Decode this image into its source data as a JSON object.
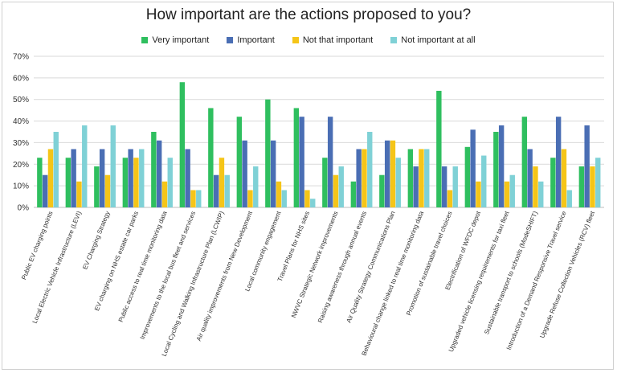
{
  "chart_data": {
    "type": "bar",
    "title": "How important are the actions proposed to you?",
    "xlabel": "",
    "ylabel": "",
    "ylim": [
      0,
      70
    ],
    "y_ticks": [
      "0%",
      "10%",
      "20%",
      "30%",
      "40%",
      "50%",
      "60%",
      "70%"
    ],
    "grid": true,
    "legend_position": "top",
    "categories": [
      "Public EV charging points",
      "Local Electric Vehicle Infrastructure (LEVI)",
      "EV Charging Strategy",
      "EV charging on NHS estate car parks",
      "Public access to real time monitoring data",
      "Improvements to the local bus fleet and services",
      "Local Cycling and Walking Infrastructure Plan (LCWIP)",
      "Air quality improvements from New Development",
      "Local community engagement",
      "Travel Plans for NHS sites",
      "NWVC Strategic Network improvements",
      "Raising awareness through annual events",
      "Air Quality Strategy Communications Plan",
      "Behavioural change linked to real time monitoring data",
      "Promotion of sustainable travel choices",
      "Electrification of WFDC depot",
      "Upgraded vehicle licensing requirements for taxi fleet",
      "Sustainable transport to schools (ModeSHIFT)",
      "Introduction of a Demand Responsive Travel service",
      "Upgrade Refuse Collection Vehicles (RCV) fleet"
    ],
    "series": [
      {
        "name": "Very important",
        "color": "#2fbf5f",
        "values": [
          23,
          23,
          19,
          23,
          35,
          58,
          46,
          42,
          50,
          46,
          23,
          12,
          15,
          27,
          54,
          28,
          35,
          42,
          23,
          19
        ]
      },
      {
        "name": "Important",
        "color": "#4a6eb4",
        "values": [
          15,
          27,
          27,
          27,
          31,
          27,
          15,
          31,
          31,
          42,
          42,
          27,
          31,
          19,
          19,
          36,
          38,
          27,
          42,
          38
        ]
      },
      {
        "name": "Not that important",
        "color": "#f5c518",
        "values": [
          27,
          12,
          15,
          23,
          12,
          8,
          23,
          8,
          12,
          8,
          15,
          27,
          31,
          27,
          8,
          12,
          12,
          19,
          27,
          19
        ]
      },
      {
        "name": "Not important at all",
        "color": "#7fd1d6",
        "values": [
          35,
          38,
          38,
          27,
          23,
          8,
          15,
          19,
          8,
          4,
          19,
          35,
          23,
          27,
          19,
          24,
          15,
          12,
          8,
          23
        ]
      }
    ]
  }
}
